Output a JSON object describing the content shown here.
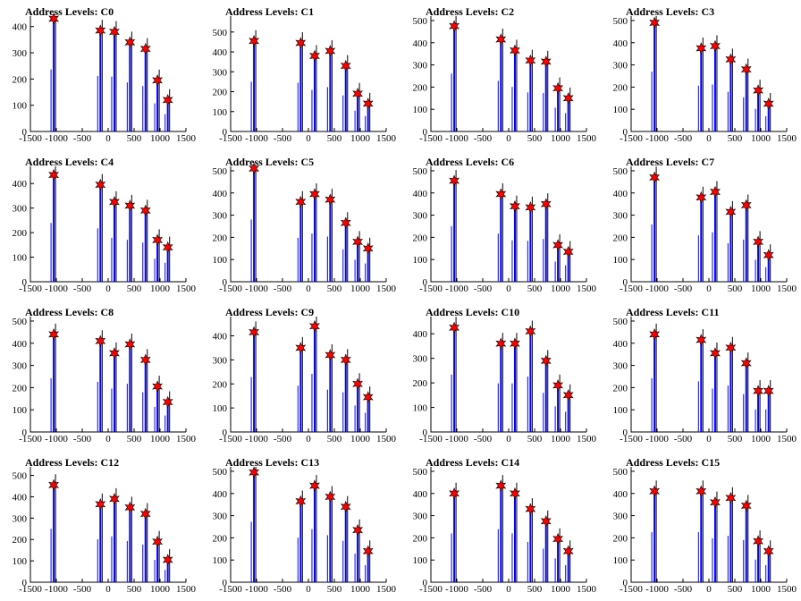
{
  "colors": {
    "bar": "#0000ff",
    "peak_marker": "#ff0000",
    "marker_edge": "#000000"
  },
  "chart_data": [
    {
      "type": "bar",
      "title": "Address Levels: C0",
      "xlim": [
        -1500,
        1500
      ],
      "ylim": [
        0,
        440
      ],
      "yticks": [
        0,
        100,
        200,
        300,
        400
      ],
      "xticks": [
        -1500,
        -1000,
        -500,
        0,
        500,
        1000,
        1500
      ],
      "peaks": [
        {
          "x": -1050,
          "y": 430
        },
        {
          "x": -150,
          "y": 385
        },
        {
          "x": 120,
          "y": 380
        },
        {
          "x": 420,
          "y": 340
        },
        {
          "x": 720,
          "y": 315
        },
        {
          "x": 950,
          "y": 195
        },
        {
          "x": 1150,
          "y": 120
        }
      ]
    },
    {
      "type": "bar",
      "title": "Address Levels: C1",
      "xlim": [
        -1500,
        1500
      ],
      "ylim": [
        0,
        580
      ],
      "yticks": [
        0,
        100,
        200,
        300,
        400,
        500
      ],
      "xticks": [
        -1500,
        -1000,
        -500,
        0,
        500,
        1000,
        1500
      ],
      "peaks": [
        {
          "x": -1050,
          "y": 455
        },
        {
          "x": -150,
          "y": 445
        },
        {
          "x": 120,
          "y": 380
        },
        {
          "x": 420,
          "y": 405
        },
        {
          "x": 720,
          "y": 330
        },
        {
          "x": 950,
          "y": 190
        },
        {
          "x": 1150,
          "y": 140
        }
      ]
    },
    {
      "type": "bar",
      "title": "Address Levels: C2",
      "xlim": [
        -1500,
        1500
      ],
      "ylim": [
        0,
        520
      ],
      "yticks": [
        0,
        100,
        200,
        300,
        400,
        500
      ],
      "xticks": [
        -1500,
        -1000,
        -500,
        0,
        500,
        1000,
        1500
      ],
      "peaks": [
        {
          "x": -1050,
          "y": 475
        },
        {
          "x": -150,
          "y": 415
        },
        {
          "x": 120,
          "y": 365
        },
        {
          "x": 420,
          "y": 320
        },
        {
          "x": 720,
          "y": 315
        },
        {
          "x": 950,
          "y": 195
        },
        {
          "x": 1150,
          "y": 150
        }
      ]
    },
    {
      "type": "bar",
      "title": "Address Levels: C3",
      "xlim": [
        -1500,
        1500
      ],
      "ylim": [
        0,
        520
      ],
      "yticks": [
        0,
        100,
        200,
        300,
        400,
        500
      ],
      "xticks": [
        -1500,
        -1000,
        -500,
        0,
        500,
        1000,
        1500
      ],
      "peaks": [
        {
          "x": -1050,
          "y": 490
        },
        {
          "x": -150,
          "y": 375
        },
        {
          "x": 120,
          "y": 385
        },
        {
          "x": 420,
          "y": 325
        },
        {
          "x": 720,
          "y": 280
        },
        {
          "x": 950,
          "y": 185
        },
        {
          "x": 1150,
          "y": 125
        }
      ]
    },
    {
      "type": "bar",
      "title": "Address Levels: C4",
      "xlim": [
        -1500,
        1500
      ],
      "ylim": [
        0,
        470
      ],
      "yticks": [
        0,
        100,
        200,
        300,
        400
      ],
      "xticks": [
        -1500,
        -1000,
        -500,
        0,
        500,
        1000,
        1500
      ],
      "peaks": [
        {
          "x": -1050,
          "y": 435
        },
        {
          "x": -150,
          "y": 395
        },
        {
          "x": 120,
          "y": 325
        },
        {
          "x": 420,
          "y": 310
        },
        {
          "x": 720,
          "y": 290
        },
        {
          "x": 950,
          "y": 170
        },
        {
          "x": 1150,
          "y": 140
        }
      ]
    },
    {
      "type": "bar",
      "title": "Address Levels: C5",
      "xlim": [
        -1500,
        1500
      ],
      "ylim": [
        0,
        520
      ],
      "yticks": [
        0,
        100,
        200,
        300,
        400,
        500
      ],
      "xticks": [
        -1500,
        -1000,
        -500,
        0,
        500,
        1000,
        1500
      ],
      "peaks": [
        {
          "x": -1050,
          "y": 510
        },
        {
          "x": -150,
          "y": 360
        },
        {
          "x": 120,
          "y": 395
        },
        {
          "x": 420,
          "y": 370
        },
        {
          "x": 720,
          "y": 265
        },
        {
          "x": 950,
          "y": 180
        },
        {
          "x": 1150,
          "y": 150
        }
      ]
    },
    {
      "type": "bar",
      "title": "Address Levels: C6",
      "xlim": [
        -1500,
        1500
      ],
      "ylim": [
        0,
        520
      ],
      "yticks": [
        0,
        100,
        200,
        300,
        400,
        500
      ],
      "xticks": [
        -1500,
        -1000,
        -500,
        0,
        500,
        1000,
        1500
      ],
      "peaks": [
        {
          "x": -1050,
          "y": 455
        },
        {
          "x": -150,
          "y": 395
        },
        {
          "x": 120,
          "y": 340
        },
        {
          "x": 420,
          "y": 335
        },
        {
          "x": 720,
          "y": 350
        },
        {
          "x": 950,
          "y": 165
        },
        {
          "x": 1150,
          "y": 135
        }
      ]
    },
    {
      "type": "bar",
      "title": "Address Levels: C7",
      "xlim": [
        -1500,
        1500
      ],
      "ylim": [
        0,
        520
      ],
      "yticks": [
        0,
        100,
        200,
        300,
        400,
        500
      ],
      "xticks": [
        -1500,
        -1000,
        -500,
        0,
        500,
        1000,
        1500
      ],
      "peaks": [
        {
          "x": -1050,
          "y": 470
        },
        {
          "x": -150,
          "y": 380
        },
        {
          "x": 120,
          "y": 405
        },
        {
          "x": 420,
          "y": 315
        },
        {
          "x": 720,
          "y": 345
        },
        {
          "x": 950,
          "y": 180
        },
        {
          "x": 1150,
          "y": 120
        }
      ]
    },
    {
      "type": "bar",
      "title": "Address Levels: C8",
      "xlim": [
        -1500,
        1500
      ],
      "ylim": [
        0,
        520
      ],
      "yticks": [
        0,
        100,
        200,
        300,
        400,
        500
      ],
      "xticks": [
        -1500,
        -1000,
        -500,
        0,
        500,
        1000,
        1500
      ],
      "peaks": [
        {
          "x": -1050,
          "y": 440
        },
        {
          "x": -150,
          "y": 410
        },
        {
          "x": 120,
          "y": 355
        },
        {
          "x": 420,
          "y": 395
        },
        {
          "x": 720,
          "y": 325
        },
        {
          "x": 950,
          "y": 205
        },
        {
          "x": 1150,
          "y": 135
        }
      ]
    },
    {
      "type": "bar",
      "title": "Address Levels: C9",
      "xlim": [
        -1500,
        1500
      ],
      "ylim": [
        0,
        480
      ],
      "yticks": [
        0,
        100,
        200,
        300,
        400
      ],
      "xticks": [
        -1500,
        -1000,
        -500,
        0,
        500,
        1000,
        1500
      ],
      "peaks": [
        {
          "x": -1050,
          "y": 415
        },
        {
          "x": -150,
          "y": 350
        },
        {
          "x": 120,
          "y": 440
        },
        {
          "x": 420,
          "y": 320
        },
        {
          "x": 720,
          "y": 300
        },
        {
          "x": 950,
          "y": 200
        },
        {
          "x": 1150,
          "y": 145
        }
      ]
    },
    {
      "type": "bar",
      "title": "Address Levels: C10",
      "xlim": [
        -1500,
        1500
      ],
      "ylim": [
        0,
        470
      ],
      "yticks": [
        0,
        100,
        200,
        300,
        400
      ],
      "xticks": [
        -1500,
        -1000,
        -500,
        0,
        500,
        1000,
        1500
      ],
      "peaks": [
        {
          "x": -1050,
          "y": 425
        },
        {
          "x": -150,
          "y": 360
        },
        {
          "x": 120,
          "y": 360
        },
        {
          "x": 420,
          "y": 410
        },
        {
          "x": 720,
          "y": 290
        },
        {
          "x": 950,
          "y": 190
        },
        {
          "x": 1150,
          "y": 150
        }
      ]
    },
    {
      "type": "bar",
      "title": "Address Levels: C11",
      "xlim": [
        -1500,
        1500
      ],
      "ylim": [
        0,
        520
      ],
      "yticks": [
        0,
        100,
        200,
        300,
        400,
        500
      ],
      "xticks": [
        -1500,
        -1000,
        -500,
        0,
        500,
        1000,
        1500
      ],
      "peaks": [
        {
          "x": -1050,
          "y": 440
        },
        {
          "x": -150,
          "y": 415
        },
        {
          "x": 120,
          "y": 355
        },
        {
          "x": 420,
          "y": 380
        },
        {
          "x": 720,
          "y": 310
        },
        {
          "x": 950,
          "y": 185
        },
        {
          "x": 1150,
          "y": 185
        }
      ]
    },
    {
      "type": "bar",
      "title": "Address Levels: C12",
      "xlim": [
        -1500,
        1500
      ],
      "ylim": [
        0,
        540
      ],
      "yticks": [
        0,
        100,
        200,
        300,
        400,
        500
      ],
      "xticks": [
        -1500,
        -1000,
        -500,
        0,
        500,
        1000,
        1500
      ],
      "peaks": [
        {
          "x": -1050,
          "y": 455
        },
        {
          "x": -150,
          "y": 365
        },
        {
          "x": 120,
          "y": 390
        },
        {
          "x": 420,
          "y": 350
        },
        {
          "x": 720,
          "y": 320
        },
        {
          "x": 950,
          "y": 190
        },
        {
          "x": 1150,
          "y": 105
        }
      ]
    },
    {
      "type": "bar",
      "title": "Address Levels: C13",
      "xlim": [
        -1500,
        1500
      ],
      "ylim": [
        0,
        520
      ],
      "yticks": [
        0,
        100,
        200,
        300,
        400,
        500
      ],
      "xticks": [
        -1500,
        -1000,
        -500,
        0,
        500,
        1000,
        1500
      ],
      "peaks": [
        {
          "x": -1050,
          "y": 495
        },
        {
          "x": -150,
          "y": 365
        },
        {
          "x": 120,
          "y": 435
        },
        {
          "x": 420,
          "y": 385
        },
        {
          "x": 720,
          "y": 340
        },
        {
          "x": 950,
          "y": 235
        },
        {
          "x": 1150,
          "y": 140
        }
      ]
    },
    {
      "type": "bar",
      "title": "Address Levels: C14",
      "xlim": [
        -1500,
        1500
      ],
      "ylim": [
        0,
        520
      ],
      "yticks": [
        0,
        100,
        200,
        300,
        400,
        500
      ],
      "xticks": [
        -1500,
        -1000,
        -500,
        0,
        500,
        1000,
        1500
      ],
      "peaks": [
        {
          "x": -1050,
          "y": 400
        },
        {
          "x": -150,
          "y": 435
        },
        {
          "x": 120,
          "y": 400
        },
        {
          "x": 420,
          "y": 330
        },
        {
          "x": 720,
          "y": 275
        },
        {
          "x": 950,
          "y": 195
        },
        {
          "x": 1150,
          "y": 140
        }
      ]
    },
    {
      "type": "bar",
      "title": "Address Levels: C15",
      "xlim": [
        -1500,
        1500
      ],
      "ylim": [
        0,
        520
      ],
      "yticks": [
        0,
        100,
        200,
        300,
        400,
        500
      ],
      "xticks": [
        -1500,
        -1000,
        -500,
        0,
        500,
        1000,
        1500
      ],
      "peaks": [
        {
          "x": -1050,
          "y": 410
        },
        {
          "x": -150,
          "y": 410
        },
        {
          "x": 120,
          "y": 360
        },
        {
          "x": 420,
          "y": 380
        },
        {
          "x": 720,
          "y": 345
        },
        {
          "x": 950,
          "y": 185
        },
        {
          "x": 1150,
          "y": 140
        }
      ]
    }
  ]
}
